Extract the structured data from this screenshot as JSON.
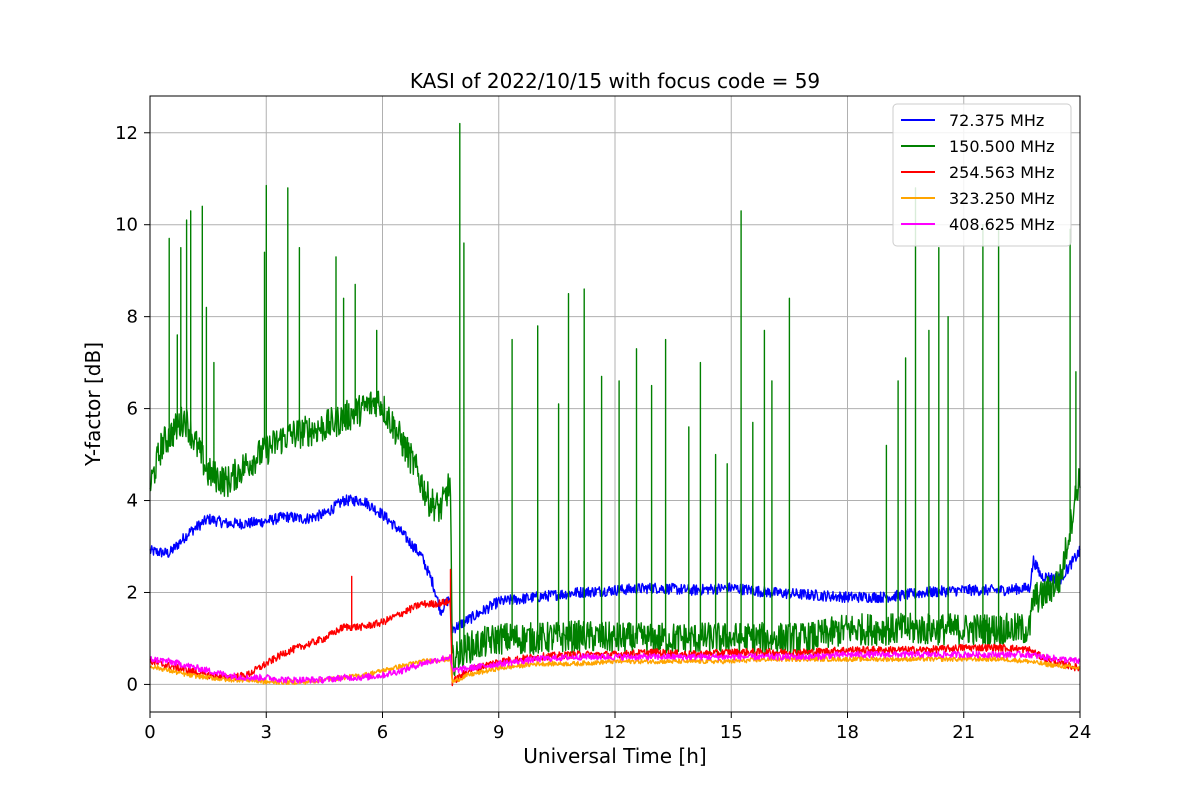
{
  "chart_data": {
    "type": "line",
    "title": "KASI of 2022/10/15 with focus code = 59",
    "xlabel": "Universal Time [h]",
    "ylabel": "Y-factor [dB]",
    "xlim": [
      0,
      24
    ],
    "ylim": [
      -0.6,
      12.8
    ],
    "xticks": [
      0,
      3,
      6,
      9,
      12,
      15,
      18,
      21,
      24
    ],
    "yticks": [
      0,
      2,
      4,
      6,
      8,
      10,
      12
    ],
    "grid": true,
    "legend_position": "top-right",
    "series": [
      {
        "name": "72.375 MHz",
        "color": "#0000ff",
        "x": [
          0,
          0.5,
          1,
          1.5,
          2,
          2.5,
          3,
          3.5,
          4,
          4.5,
          5,
          5.5,
          6,
          6.5,
          7,
          7.3,
          7.5,
          7.75,
          7.8,
          8.2,
          9,
          10,
          11,
          12,
          13,
          14,
          15,
          16,
          17,
          18,
          19,
          20,
          21,
          22,
          22.7,
          22.8,
          23,
          23.5,
          24
        ],
        "y": [
          2.9,
          2.85,
          3.3,
          3.6,
          3.5,
          3.5,
          3.55,
          3.65,
          3.6,
          3.7,
          4.0,
          4.0,
          3.7,
          3.3,
          2.8,
          2.2,
          1.6,
          1.9,
          1.2,
          1.4,
          1.8,
          1.9,
          2.0,
          2.05,
          2.1,
          2.05,
          2.1,
          2.0,
          1.95,
          1.9,
          1.9,
          2.0,
          2.05,
          2.05,
          2.1,
          2.7,
          2.35,
          2.3,
          2.9
        ],
        "noise": 0.12
      },
      {
        "name": "150.500 MHz",
        "color": "#008000",
        "x": [
          0,
          0.3,
          0.6,
          0.9,
          1.2,
          1.5,
          2,
          2.5,
          3,
          3.5,
          4,
          4.5,
          5,
          5.5,
          5.9,
          6.3,
          6.8,
          7.2,
          7.5,
          7.75,
          7.8,
          8.2,
          9,
          10,
          11,
          12,
          13,
          14,
          15,
          16,
          17,
          18,
          19,
          20,
          21,
          22,
          22.7,
          22.8,
          23,
          23.5,
          24
        ],
        "y": [
          4.3,
          5.2,
          5.5,
          5.8,
          5.2,
          4.6,
          4.4,
          4.8,
          5.1,
          5.4,
          5.5,
          5.6,
          5.8,
          6.0,
          6.2,
          5.6,
          4.8,
          4.0,
          3.8,
          4.4,
          0.5,
          0.8,
          1.0,
          1.0,
          1.05,
          1.0,
          1.0,
          1.0,
          1.0,
          1.0,
          1.0,
          1.2,
          1.2,
          1.2,
          1.2,
          1.2,
          1.2,
          1.9,
          1.9,
          2.3,
          4.6
        ],
        "noise": 0.35,
        "spikes": [
          [
            0.5,
            9.7
          ],
          [
            0.7,
            7.6
          ],
          [
            0.8,
            9.5
          ],
          [
            0.95,
            10.1
          ],
          [
            1.05,
            10.3
          ],
          [
            1.35,
            10.4
          ],
          [
            1.45,
            8.2
          ],
          [
            1.65,
            7.0
          ],
          [
            2.95,
            9.4
          ],
          [
            3.0,
            10.85
          ],
          [
            3.55,
            10.8
          ],
          [
            3.85,
            9.5
          ],
          [
            4.8,
            9.3
          ],
          [
            5.0,
            8.4
          ],
          [
            5.3,
            8.7
          ],
          [
            5.85,
            7.7
          ],
          [
            8.0,
            12.2
          ],
          [
            8.1,
            9.6
          ],
          [
            9.35,
            7.5
          ],
          [
            10.0,
            7.8
          ],
          [
            10.55,
            6.1
          ],
          [
            10.8,
            8.5
          ],
          [
            11.2,
            8.6
          ],
          [
            11.65,
            6.7
          ],
          [
            12.1,
            6.6
          ],
          [
            12.55,
            7.3
          ],
          [
            12.95,
            6.5
          ],
          [
            13.3,
            7.5
          ],
          [
            13.9,
            5.6
          ],
          [
            14.2,
            7.0
          ],
          [
            14.6,
            5.0
          ],
          [
            14.9,
            4.8
          ],
          [
            15.25,
            10.3
          ],
          [
            15.55,
            5.7
          ],
          [
            15.85,
            7.7
          ],
          [
            16.05,
            6.6
          ],
          [
            16.5,
            8.4
          ],
          [
            19.0,
            5.2
          ],
          [
            19.3,
            6.6
          ],
          [
            19.5,
            7.1
          ],
          [
            19.75,
            10.8
          ],
          [
            20.1,
            7.7
          ],
          [
            20.35,
            9.5
          ],
          [
            20.6,
            8.0
          ],
          [
            21.5,
            10.0
          ],
          [
            21.9,
            9.9
          ],
          [
            23.75,
            9.9
          ],
          [
            23.9,
            6.8
          ]
        ]
      },
      {
        "name": "254.563 MHz",
        "color": "#ff0000",
        "x": [
          0,
          0.5,
          1,
          1.5,
          2,
          2.5,
          3,
          3.5,
          4,
          4.5,
          4.8,
          5,
          5.2,
          5.5,
          6,
          6.5,
          7,
          7.3,
          7.75,
          7.8,
          8.2,
          9,
          10,
          11,
          12,
          13,
          14,
          15,
          16,
          17,
          18,
          19,
          20,
          21,
          22,
          22.7,
          23,
          23.5,
          24
        ],
        "y": [
          0.5,
          0.4,
          0.3,
          0.2,
          0.15,
          0.2,
          0.45,
          0.7,
          0.85,
          1.0,
          1.15,
          1.25,
          1.25,
          1.25,
          1.35,
          1.55,
          1.75,
          1.75,
          1.8,
          0.05,
          0.3,
          0.5,
          0.6,
          0.65,
          0.65,
          0.7,
          0.65,
          0.7,
          0.7,
          0.7,
          0.75,
          0.75,
          0.75,
          0.8,
          0.8,
          0.75,
          0.6,
          0.45,
          0.35
        ],
        "noise": 0.08,
        "spikes": [
          [
            5.2,
            2.35
          ],
          [
            7.75,
            2.5
          ]
        ]
      },
      {
        "name": "323.250 MHz",
        "color": "#ffa500",
        "x": [
          0,
          0.5,
          1,
          1.5,
          2,
          2.5,
          3,
          3.5,
          4,
          4.5,
          5,
          5.5,
          6,
          6.5,
          7,
          7.75,
          7.8,
          8.2,
          9,
          10,
          11,
          12,
          13,
          14,
          15,
          16,
          17,
          18,
          19,
          20,
          21,
          22,
          22.7,
          23,
          23.5,
          24
        ],
        "y": [
          0.4,
          0.3,
          0.2,
          0.15,
          0.1,
          0.1,
          0.05,
          0.05,
          0.05,
          0.1,
          0.15,
          0.2,
          0.3,
          0.4,
          0.5,
          0.55,
          0.05,
          0.2,
          0.35,
          0.45,
          0.45,
          0.5,
          0.5,
          0.5,
          0.5,
          0.55,
          0.55,
          0.55,
          0.55,
          0.55,
          0.55,
          0.55,
          0.5,
          0.45,
          0.4,
          0.35
        ],
        "noise": 0.05
      },
      {
        "name": "408.625 MHz",
        "color": "#ff00ff",
        "x": [
          0,
          0.5,
          1,
          1.5,
          2,
          2.5,
          3,
          3.5,
          4,
          4.5,
          5,
          5.5,
          6,
          6.5,
          7,
          7.75,
          7.8,
          8.2,
          9,
          10,
          11,
          12,
          13,
          14,
          15,
          16,
          17,
          18,
          19,
          20,
          21,
          22,
          22.7,
          23,
          23.5,
          24
        ],
        "y": [
          0.55,
          0.5,
          0.4,
          0.3,
          0.2,
          0.15,
          0.15,
          0.1,
          0.1,
          0.1,
          0.15,
          0.15,
          0.2,
          0.3,
          0.45,
          0.6,
          0.3,
          0.35,
          0.45,
          0.55,
          0.6,
          0.6,
          0.6,
          0.6,
          0.6,
          0.6,
          0.6,
          0.65,
          0.65,
          0.65,
          0.65,
          0.65,
          0.65,
          0.6,
          0.55,
          0.5
        ],
        "noise": 0.07
      }
    ]
  }
}
